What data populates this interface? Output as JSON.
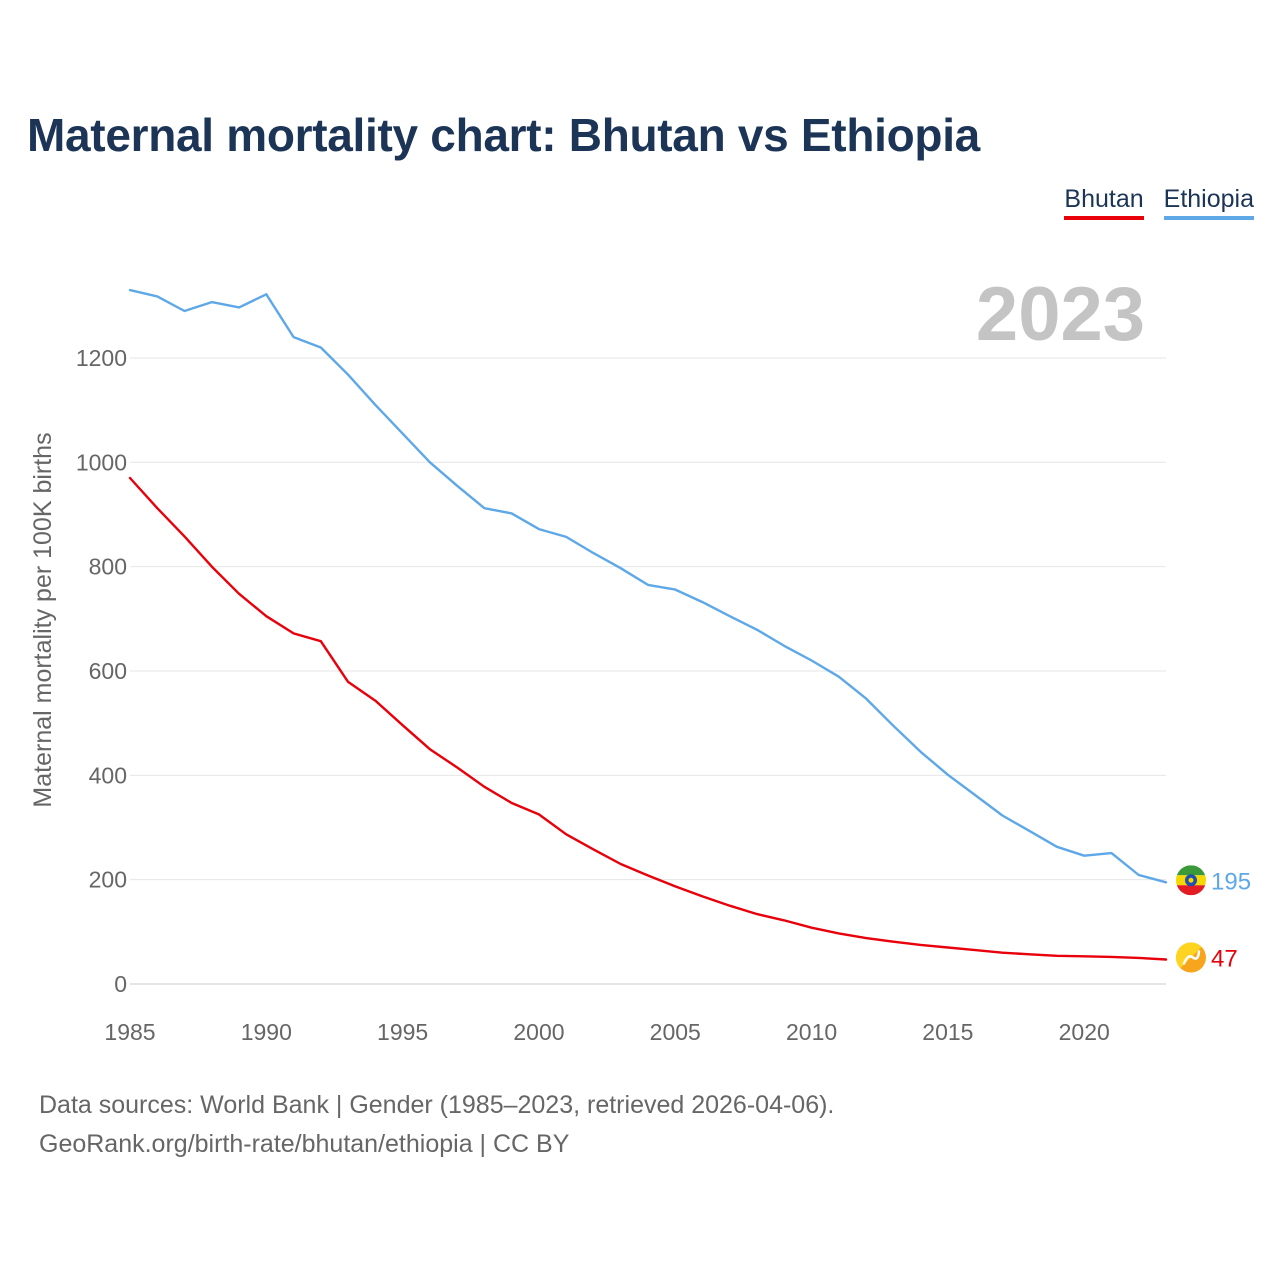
{
  "title": "Maternal mortality chart: Bhutan vs Ethiopia",
  "legend": {
    "bhutan": "Bhutan",
    "ethiopia": "Ethiopia"
  },
  "source": {
    "line1": "Data sources: World Bank | Gender (1985–2023, retrieved 2026-04-06).",
    "line2": "GeoRank.org/birth-rate/bhutan/ethiopia | CC BY"
  },
  "chart_data": {
    "type": "line",
    "ylabel": "Maternal mortality per 100K births",
    "xlabel": "",
    "year_label": "2023",
    "xlim": [
      1985,
      2023
    ],
    "ylim": [
      0,
      1400
    ],
    "x_ticks": [
      1985,
      1990,
      1995,
      2000,
      2005,
      2010,
      2015,
      2020
    ],
    "y_ticks": [
      0,
      200,
      400,
      600,
      800,
      1000,
      1200
    ],
    "grid": true,
    "x": [
      1985,
      1986,
      1987,
      1988,
      1989,
      1990,
      1991,
      1992,
      1993,
      1994,
      1995,
      1996,
      1997,
      1998,
      1999,
      2000,
      2001,
      2002,
      2003,
      2004,
      2005,
      2006,
      2007,
      2008,
      2009,
      2010,
      2011,
      2012,
      2013,
      2014,
      2015,
      2016,
      2017,
      2018,
      2019,
      2020,
      2021,
      2022,
      2023
    ],
    "series": [
      {
        "name": "Bhutan",
        "color": "#e8000b",
        "end_label": "47",
        "flag_icon": "bhutan-flag-icon",
        "values": [
          970,
          912,
          858,
          800,
          748,
          705,
          672,
          657,
          579,
          543,
          496,
          450,
          415,
          378,
          347,
          325,
          287,
          258,
          230,
          208,
          187,
          168,
          150,
          134,
          122,
          108,
          97,
          88,
          81,
          75,
          70,
          65,
          60,
          57,
          54,
          53,
          52,
          50,
          47
        ]
      },
      {
        "name": "Ethiopia",
        "color": "#5ea8e8",
        "end_label": "195",
        "flag_icon": "ethiopia-flag-icon",
        "values": [
          1330,
          1318,
          1290,
          1307,
          1297,
          1322,
          1240,
          1220,
          1168,
          1110,
          1055,
          1000,
          955,
          912,
          902,
          872,
          857,
          826,
          797,
          765,
          756,
          732,
          705,
          679,
          648,
          620,
          589,
          547,
          495,
          445,
          401,
          362,
          323,
          293,
          263,
          246,
          251,
          209,
          195
        ]
      }
    ]
  }
}
